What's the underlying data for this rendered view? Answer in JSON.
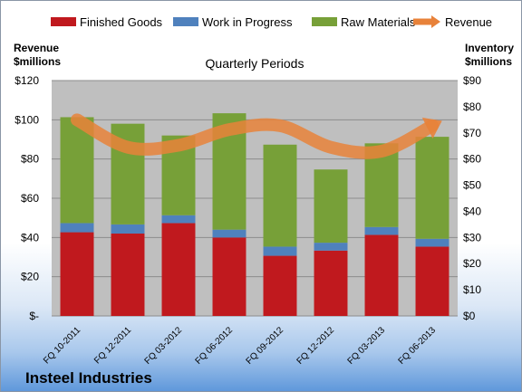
{
  "colors": {
    "finished_goods": "#c0191e",
    "work_in_progress": "#4f81bd",
    "raw_materials": "#77a038",
    "revenue": "#e8823a",
    "plot_bg": "#bfbfbf"
  },
  "legend": [
    {
      "key": "finished_goods",
      "label": "Finished Goods"
    },
    {
      "key": "work_in_progress",
      "label": "Work in Progress"
    },
    {
      "key": "raw_materials",
      "label": "Raw Materials"
    },
    {
      "key": "revenue",
      "label": "Revenue"
    }
  ],
  "left_axis_title": [
    "Revenue",
    "$millions"
  ],
  "right_axis_title": [
    "Inventory",
    "$millions"
  ],
  "company": "Insteel Industries",
  "chart_data": {
    "type": "bar",
    "title": "Quarterly Periods",
    "stacked": true,
    "categories": [
      "FQ 10-2011",
      "FQ 12-2011",
      "FQ 03-2012",
      "FQ 06-2012",
      "FQ 09-2012",
      "FQ 12-2012",
      "FQ 03-2013",
      "FQ 06-2013"
    ],
    "series": [
      {
        "name": "Finished Goods",
        "axis": "right",
        "values": [
          32,
          31.5,
          35.5,
          30,
          23,
          25,
          31,
          26.5
        ]
      },
      {
        "name": "Work in Progress",
        "axis": "right",
        "values": [
          3.5,
          3.5,
          3,
          3,
          3.5,
          3,
          3,
          3
        ]
      },
      {
        "name": "Raw Materials",
        "axis": "right",
        "values": [
          40.5,
          38.5,
          30.5,
          44.5,
          39,
          28,
          32,
          39
        ]
      },
      {
        "name": "Revenue",
        "type": "line",
        "axis": "left",
        "values": [
          100,
          86,
          87,
          95,
          97,
          86,
          84,
          97
        ]
      }
    ],
    "left_axis": {
      "ylim": [
        0,
        120
      ],
      "ticks": [
        "$-",
        "$20",
        "$40",
        "$60",
        "$80",
        "$100",
        "$120"
      ]
    },
    "right_axis": {
      "ylim": [
        0,
        90
      ],
      "ticks": [
        "$0",
        "$10",
        "$20",
        "$30",
        "$40",
        "$50",
        "$60",
        "$70",
        "$80",
        "$90"
      ]
    },
    "grid": true,
    "legend_position": "top"
  }
}
